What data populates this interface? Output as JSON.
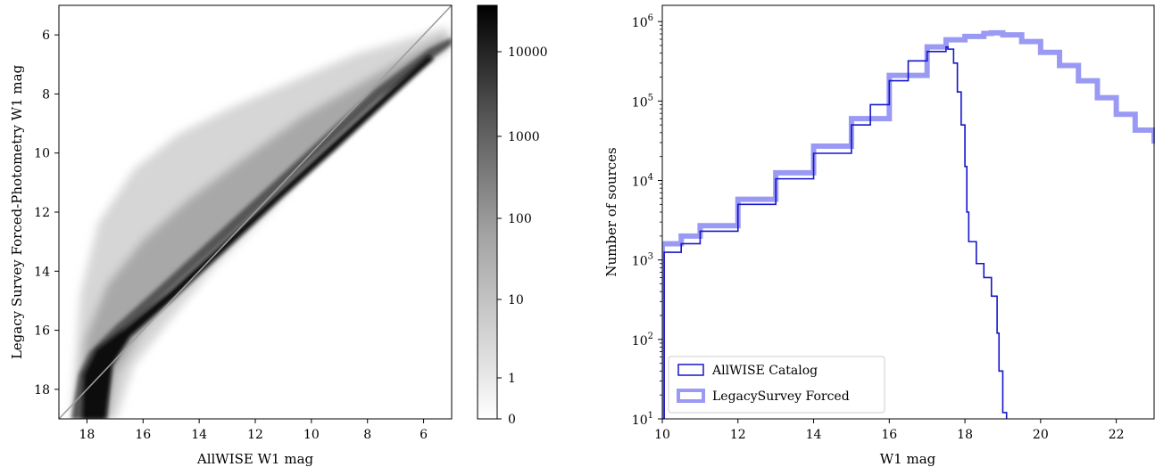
{
  "chart_data": [
    {
      "type": "heatmap",
      "xlabel": "AllWISE W1 mag",
      "ylabel": "Legacy Survey Forced-Photometry W1 mag",
      "xlim": [
        19,
        5
      ],
      "ylim": [
        19,
        5
      ],
      "x_ticks": [
        18,
        16,
        14,
        12,
        10,
        8,
        6
      ],
      "y_ticks": [
        6,
        8,
        10,
        12,
        14,
        16,
        18
      ],
      "grid": false,
      "reference_line": "y = x",
      "density_ridge": [
        {
          "x": 18.0,
          "y": 17.8
        },
        {
          "x": 17.5,
          "y": 17.4
        },
        {
          "x": 17.0,
          "y": 17.0
        },
        {
          "x": 16.0,
          "y": 16.1
        },
        {
          "x": 15.0,
          "y": 15.1
        },
        {
          "x": 14.0,
          "y": 14.1
        },
        {
          "x": 12.0,
          "y": 12.0
        },
        {
          "x": 10.0,
          "y": 10.0
        },
        {
          "x": 8.0,
          "y": 8.0
        },
        {
          "x": 6.0,
          "y": 6.1
        },
        {
          "x": 5.2,
          "y": 5.9
        }
      ],
      "colorbar": {
        "scale": "log",
        "ticks": [
          "0",
          "1",
          "10",
          "100",
          "1000",
          "10000"
        ],
        "colors": [
          "#ffffff",
          "#000000"
        ]
      }
    },
    {
      "type": "line",
      "xlabel": "W1 mag",
      "ylabel": "Number of sources",
      "xlim": [
        10,
        23
      ],
      "ylim": [
        10,
        1600000
      ],
      "y_scale": "log",
      "x_ticks": [
        10,
        12,
        14,
        16,
        18,
        20,
        22
      ],
      "y_ticks": [
        {
          "value": 10,
          "base": "10",
          "exp": "1"
        },
        {
          "value": 100,
          "base": "10",
          "exp": "2"
        },
        {
          "value": 1000,
          "base": "10",
          "exp": "3"
        },
        {
          "value": 10000,
          "base": "10",
          "exp": "4"
        },
        {
          "value": 100000,
          "base": "10",
          "exp": "5"
        },
        {
          "value": 1000000,
          "base": "10",
          "exp": "6"
        }
      ],
      "grid": false,
      "legend_position": "lower-left",
      "series": [
        {
          "name": "AllWISE Catalog",
          "color": "#1515cc",
          "style": "step",
          "x": [
            10.0,
            10.05,
            10.5,
            11.0,
            12.0,
            13.0,
            14.0,
            15.0,
            15.5,
            16.0,
            16.5,
            17.0,
            17.5,
            17.55,
            17.7,
            17.8,
            17.9,
            18.0,
            18.05,
            18.1,
            18.3,
            18.5,
            18.7,
            18.85,
            18.9,
            19.0,
            19.1
          ],
          "values": [
            10,
            1250,
            1600,
            2300,
            5000,
            10500,
            22000,
            50000,
            90000,
            180000,
            320000,
            420000,
            480000,
            450000,
            300000,
            130000,
            50000,
            15000,
            4000,
            1700,
            900,
            600,
            350,
            120,
            40,
            12,
            10
          ]
        },
        {
          "name": "LegacySurvey Forced",
          "color": "#9a9af4",
          "style": "step",
          "x": [
            10.0,
            10.5,
            11.0,
            12.0,
            13.0,
            14.0,
            15.0,
            16.0,
            17.0,
            17.5,
            18.0,
            18.5,
            18.7,
            19.0,
            19.5,
            20.0,
            20.5,
            21.0,
            21.5,
            22.0,
            22.5,
            23.0
          ],
          "values": [
            1600,
            2000,
            2700,
            5800,
            12500,
            27000,
            60000,
            210000,
            480000,
            590000,
            650000,
            710000,
            720000,
            680000,
            560000,
            410000,
            280000,
            180000,
            110000,
            68000,
            43000,
            29000
          ]
        }
      ]
    }
  ]
}
